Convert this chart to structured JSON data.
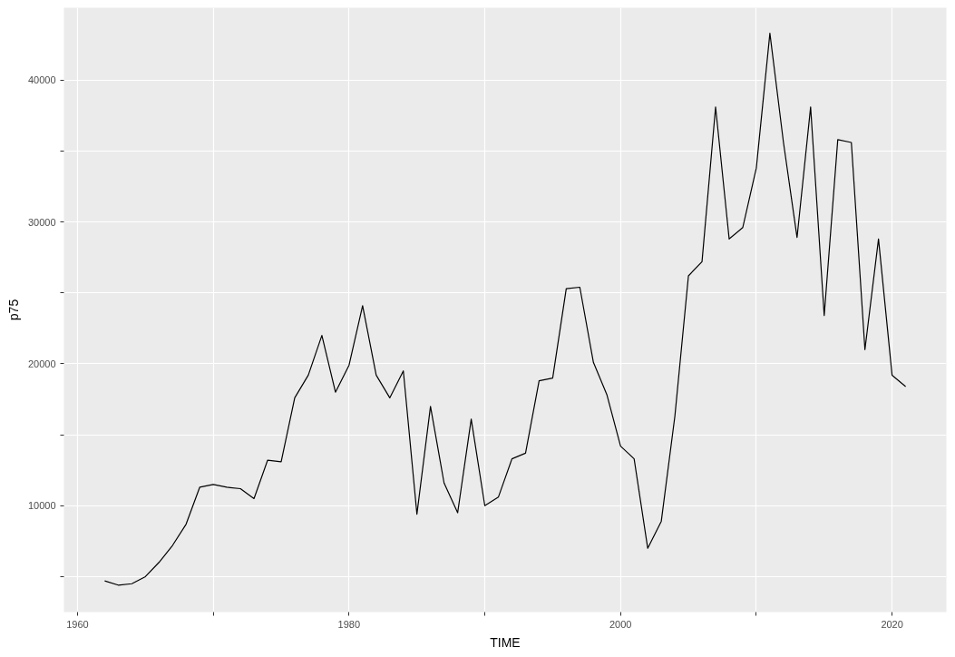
{
  "chart_data": {
    "type": "line",
    "xlabel": "TIME",
    "ylabel": "p75",
    "x": [
      1962,
      1963,
      1964,
      1965,
      1966,
      1967,
      1968,
      1969,
      1970,
      1971,
      1972,
      1973,
      1974,
      1975,
      1976,
      1977,
      1978,
      1979,
      1980,
      1981,
      1982,
      1983,
      1984,
      1985,
      1986,
      1987,
      1988,
      1989,
      1990,
      1991,
      1992,
      1993,
      1994,
      1995,
      1996,
      1997,
      1998,
      1999,
      2000,
      2001,
      2002,
      2003,
      2004,
      2005,
      2006,
      2007,
      2008,
      2009,
      2010,
      2011,
      2012,
      2013,
      2014,
      2015,
      2016,
      2017,
      2018,
      2019,
      2020,
      2021
    ],
    "series": [
      {
        "color": "#000000",
        "values": [
          4700,
          4400,
          4500,
          5000,
          6000,
          7200,
          8700,
          11300,
          11500,
          11300,
          11200,
          10500,
          13200,
          13100,
          17600,
          19200,
          22000,
          18000,
          19900,
          24100,
          19200,
          17600,
          19500,
          9400,
          17000,
          11600,
          9500,
          16100,
          10000,
          10600,
          13300,
          13700,
          18800,
          19000,
          25300,
          25400,
          20100,
          17800,
          14200,
          13300,
          7000,
          8900,
          16300,
          26200,
          27200,
          38100,
          28800,
          29600,
          33800,
          43300,
          35600,
          28900,
          38100,
          23400,
          35800,
          35600,
          21000,
          28800,
          19200,
          18400
        ]
      }
    ],
    "xlim": [
      1959,
      2024
    ],
    "ylim": [
      2500,
      45100
    ],
    "xticks": [
      1960,
      {
        "value": 1970,
        "label": null
      },
      1980,
      {
        "value": 1990,
        "label": null
      },
      2000,
      {
        "value": 2010,
        "label": null
      },
      2020
    ],
    "yticks": [
      {
        "value": 5000,
        "label": null
      },
      10000,
      {
        "value": 15000,
        "label": null
      },
      20000,
      {
        "value": 25000,
        "label": null
      },
      30000,
      {
        "value": 35000,
        "label": null
      },
      40000
    ],
    "grid": true,
    "line_style": "solid"
  }
}
